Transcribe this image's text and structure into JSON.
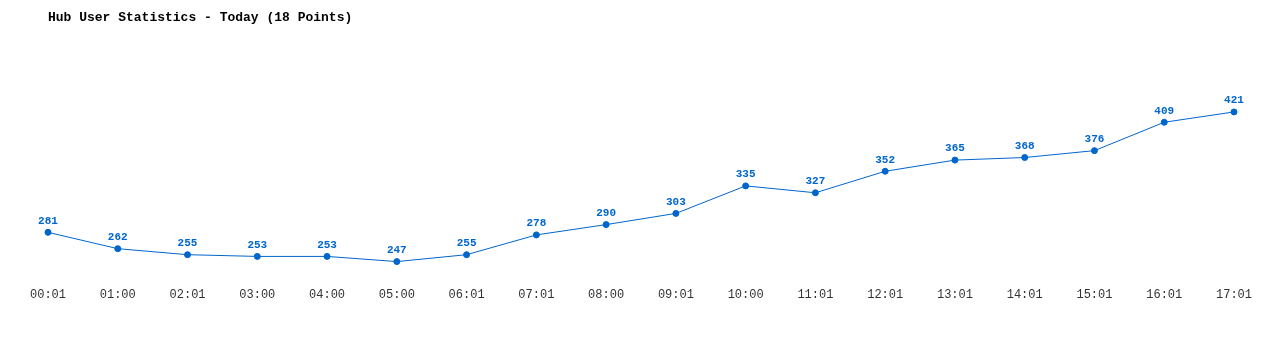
{
  "chart_data": {
    "type": "line",
    "title": "Hub User Statistics - Today (18 Points)",
    "categories": [
      "00:01",
      "01:00",
      "02:01",
      "03:00",
      "04:00",
      "05:00",
      "06:01",
      "07:01",
      "08:00",
      "09:01",
      "10:00",
      "11:01",
      "12:01",
      "13:01",
      "14:01",
      "15:01",
      "16:01",
      "17:01"
    ],
    "series": [
      {
        "color": "#0066cc",
        "values": [
          281,
          262,
          255,
          253,
          253,
          247,
          255,
          278,
          290,
          303,
          335,
          327,
          352,
          365,
          368,
          376,
          409,
          421
        ]
      }
    ],
    "data_labels": true,
    "marker": "circle",
    "grid": false,
    "legend": false
  }
}
